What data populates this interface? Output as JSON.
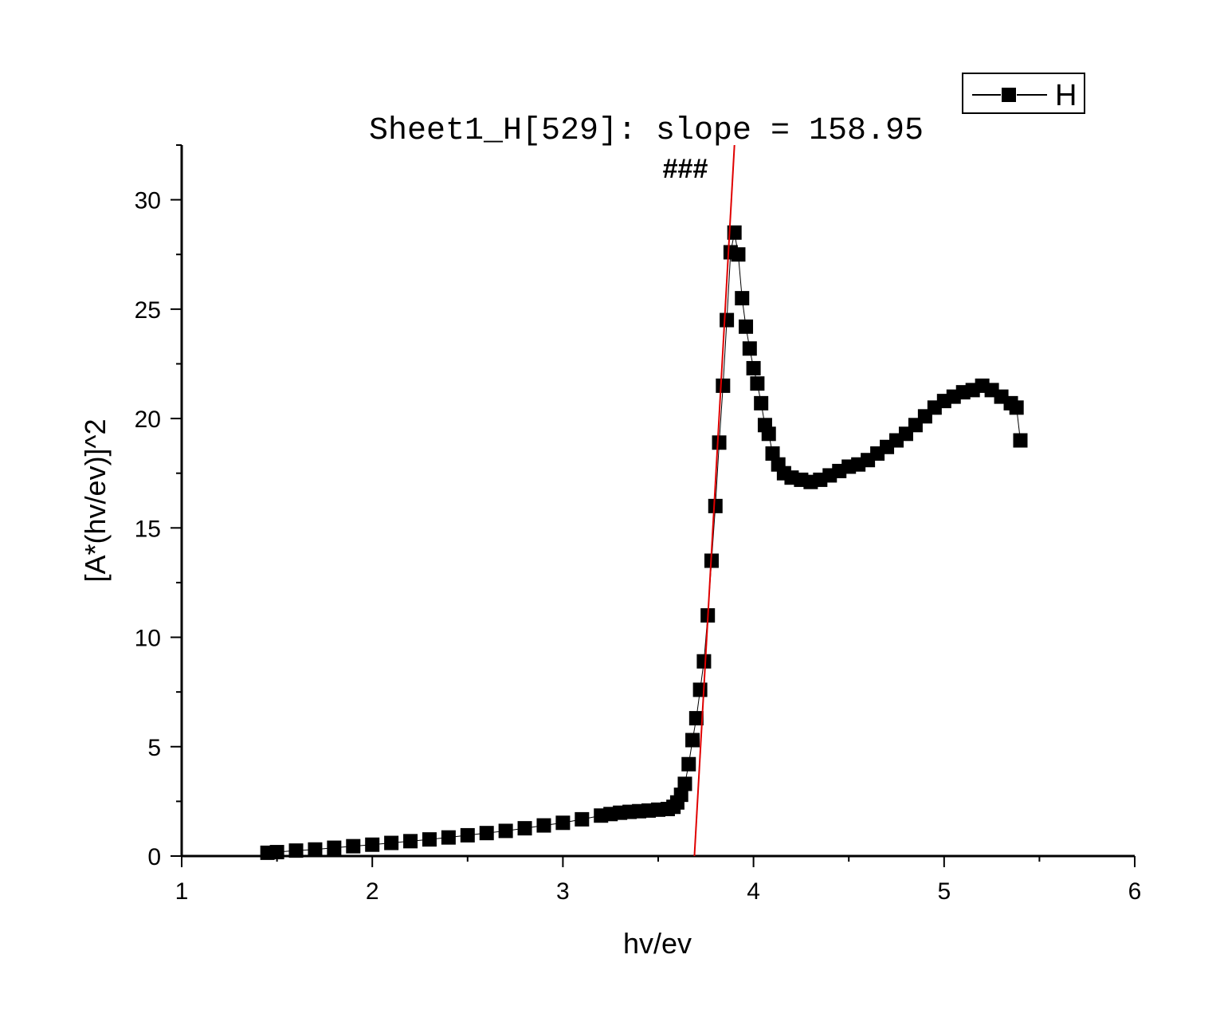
{
  "chart_data": {
    "type": "scatter",
    "title": "",
    "xlabel": "hv/ev",
    "ylabel": "[A*(hv/ev)]^2",
    "xlim": [
      1,
      6
    ],
    "ylim": [
      0,
      32.5
    ],
    "xticks": [
      "1",
      "2",
      "3",
      "4",
      "5",
      "6"
    ],
    "yticks": [
      "0",
      "5",
      "10",
      "15",
      "20",
      "25",
      "30"
    ],
    "legend": {
      "position": "top-right",
      "entries": [
        "H"
      ]
    },
    "annotations": [
      "Sheet1_H[529]: slope = 158.95",
      "###"
    ],
    "fit_line": {
      "color": "#e00000",
      "slope": 158.95,
      "x": [
        3.69,
        3.9
      ],
      "y": [
        0,
        32.5
      ]
    },
    "series": [
      {
        "name": "H",
        "marker": "square",
        "color": "#000000",
        "x": [
          1.45,
          1.5,
          1.6,
          1.7,
          1.8,
          1.9,
          2.0,
          2.1,
          2.2,
          2.3,
          2.4,
          2.5,
          2.6,
          2.7,
          2.8,
          2.9,
          3.0,
          3.1,
          3.2,
          3.25,
          3.3,
          3.35,
          3.4,
          3.45,
          3.5,
          3.55,
          3.58,
          3.6,
          3.62,
          3.64,
          3.66,
          3.68,
          3.7,
          3.72,
          3.74,
          3.76,
          3.78,
          3.8,
          3.82,
          3.84,
          3.86,
          3.88,
          3.9,
          3.92,
          3.94,
          3.96,
          3.98,
          4.0,
          4.02,
          4.04,
          4.06,
          4.08,
          4.1,
          4.13,
          4.16,
          4.2,
          4.25,
          4.3,
          4.35,
          4.4,
          4.45,
          4.5,
          4.55,
          4.6,
          4.65,
          4.7,
          4.75,
          4.8,
          4.85,
          4.9,
          4.95,
          5.0,
          5.05,
          5.1,
          5.15,
          5.2,
          5.25,
          5.3,
          5.35,
          5.38,
          5.4
        ],
        "y": [
          0.15,
          0.18,
          0.25,
          0.3,
          0.38,
          0.45,
          0.52,
          0.6,
          0.68,
          0.76,
          0.85,
          0.95,
          1.05,
          1.15,
          1.27,
          1.4,
          1.52,
          1.68,
          1.85,
          1.92,
          1.98,
          2.02,
          2.05,
          2.08,
          2.12,
          2.15,
          2.25,
          2.45,
          2.8,
          3.3,
          4.2,
          5.3,
          6.3,
          7.6,
          8.9,
          11.0,
          13.5,
          16.0,
          18.9,
          21.5,
          24.5,
          27.6,
          28.5,
          27.5,
          25.5,
          24.2,
          23.2,
          22.3,
          21.6,
          20.7,
          19.7,
          19.3,
          18.4,
          17.9,
          17.5,
          17.3,
          17.2,
          17.1,
          17.2,
          17.4,
          17.6,
          17.8,
          17.9,
          18.1,
          18.4,
          18.7,
          19.0,
          19.3,
          19.7,
          20.1,
          20.5,
          20.8,
          21.0,
          21.2,
          21.3,
          21.5,
          21.3,
          21.0,
          20.7,
          20.5,
          19.0
        ]
      }
    ]
  }
}
